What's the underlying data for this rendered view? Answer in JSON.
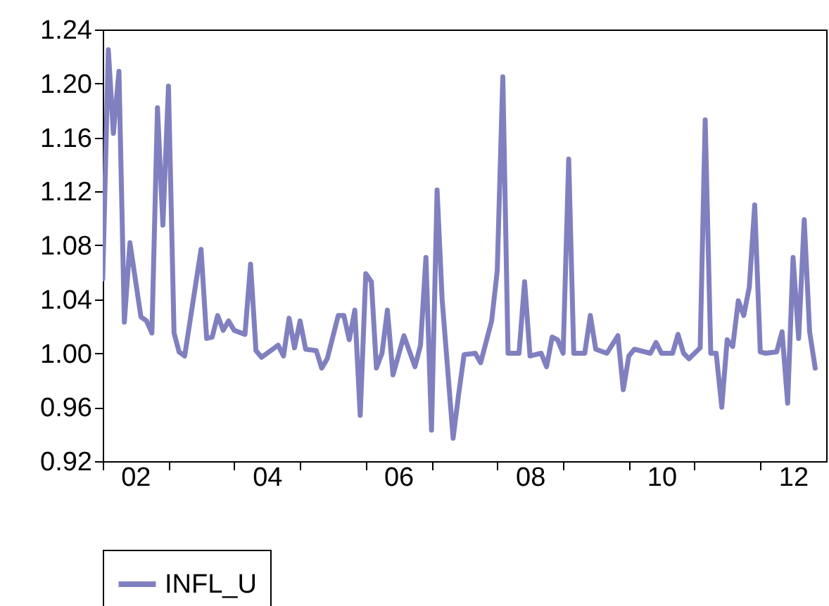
{
  "chart_data": {
    "type": "line",
    "x": [
      "2002-01",
      "2002-02",
      "2002-03",
      "2002-04",
      "2002-05",
      "2002-06",
      "2002-08",
      "2002-09",
      "2002-10",
      "2002-11",
      "2002-12",
      "2003-01",
      "2003-02",
      "2003-03",
      "2003-04",
      "2003-07",
      "2003-08",
      "2003-09",
      "2003-10",
      "2003-11",
      "2003-12",
      "2004-01",
      "2004-03",
      "2004-04",
      "2004-05",
      "2004-06",
      "2004-09",
      "2004-10",
      "2004-11",
      "2004-12",
      "2005-01",
      "2005-02",
      "2005-04",
      "2005-05",
      "2005-06",
      "2005-08",
      "2005-09",
      "2005-10",
      "2005-11",
      "2005-12",
      "2006-01",
      "2006-02",
      "2006-03",
      "2006-04",
      "2006-05",
      "2006-06",
      "2006-08",
      "2006-10",
      "2006-11",
      "2006-12",
      "2007-01",
      "2007-02",
      "2007-03",
      "2007-05",
      "2007-06",
      "2007-07",
      "2007-09",
      "2007-10",
      "2007-12",
      "2008-01",
      "2008-02",
      "2008-03",
      "2008-05",
      "2008-06",
      "2008-07",
      "2008-09",
      "2008-10",
      "2008-11",
      "2008-12",
      "2009-01",
      "2009-02",
      "2009-03",
      "2009-05",
      "2009-06",
      "2009-07",
      "2009-09",
      "2009-11",
      "2009-12",
      "2010-01",
      "2010-02",
      "2010-05",
      "2010-06",
      "2010-07",
      "2010-09",
      "2010-10",
      "2010-11",
      "2010-12",
      "2011-02",
      "2011-03",
      "2011-04",
      "2011-05",
      "2011-06",
      "2011-07",
      "2011-08",
      "2011-09",
      "2011-10",
      "2011-11",
      "2011-12",
      "2012-01",
      "2012-02",
      "2012-04",
      "2012-05",
      "2012-06",
      "2012-07",
      "2012-08",
      "2012-09",
      "2012-10",
      "2012-11"
    ],
    "series": [
      {
        "name": "INFL_U",
        "color": "#8080c0",
        "values": [
          1.055,
          1.225,
          1.163,
          1.209,
          1.023,
          1.082,
          1.027,
          1.024,
          1.015,
          1.182,
          1.095,
          1.198,
          1.015,
          1.001,
          0.998,
          1.077,
          1.011,
          1.012,
          1.028,
          1.017,
          1.024,
          1.017,
          1.014,
          1.066,
          1.002,
          0.997,
          1.006,
          0.998,
          1.026,
          1.004,
          1.024,
          1.003,
          1.002,
          0.989,
          0.996,
          1.028,
          1.028,
          1.01,
          1.032,
          0.954,
          1.059,
          1.053,
          0.989,
          1.0,
          1.032,
          0.984,
          1.013,
          0.99,
          1.006,
          1.071,
          0.943,
          1.121,
          1.04,
          0.937,
          0.97,
          0.999,
          1.0,
          0.993,
          1.024,
          1.061,
          1.205,
          1.0,
          1.0,
          1.053,
          0.998,
          1.0,
          0.99,
          1.012,
          1.01,
          1.0,
          1.144,
          1.0,
          1.0,
          1.028,
          1.003,
          1.0,
          1.013,
          0.973,
          0.998,
          1.003,
          1.0,
          1.008,
          1.0,
          1.0,
          1.014,
          1.0,
          0.996,
          1.004,
          1.173,
          1.0,
          1.0,
          0.96,
          1.01,
          1.005,
          1.039,
          1.028,
          1.049,
          1.11,
          1.001,
          1.0,
          1.001,
          1.016,
          0.963,
          1.071,
          1.011,
          1.099,
          1.016,
          0.989
        ]
      }
    ],
    "xlim": [
      "2002-01",
      "2013-01"
    ],
    "xticks": [
      {
        "value": "2002",
        "label": null
      },
      {
        "value": "2002-07",
        "label": "02"
      },
      {
        "value": "2003",
        "label": null
      },
      {
        "value": "2004",
        "label": null
      },
      {
        "value": "2004-07",
        "label": "04"
      },
      {
        "value": "2005",
        "label": null
      },
      {
        "value": "2006",
        "label": null
      },
      {
        "value": "2006-07",
        "label": "06"
      },
      {
        "value": "2007",
        "label": null
      },
      {
        "value": "2008",
        "label": null
      },
      {
        "value": "2008-07",
        "label": "08"
      },
      {
        "value": "2009",
        "label": null
      },
      {
        "value": "2010",
        "label": null
      },
      {
        "value": "2010-07",
        "label": "10"
      },
      {
        "value": "2011",
        "label": null
      },
      {
        "value": "2012",
        "label": null
      },
      {
        "value": "2012-07",
        "label": "12"
      }
    ],
    "ylim": [
      0.92,
      1.24
    ],
    "yticks": [
      0.92,
      0.96,
      {
        "value": 1.0,
        "label": "1.00"
      },
      1.04,
      1.08,
      1.12,
      1.16,
      {
        "value": 1.2,
        "label": "1.20"
      },
      1.24
    ],
    "grid": false,
    "legend": "bottom",
    "line_style": "solid",
    "marker": "none"
  }
}
